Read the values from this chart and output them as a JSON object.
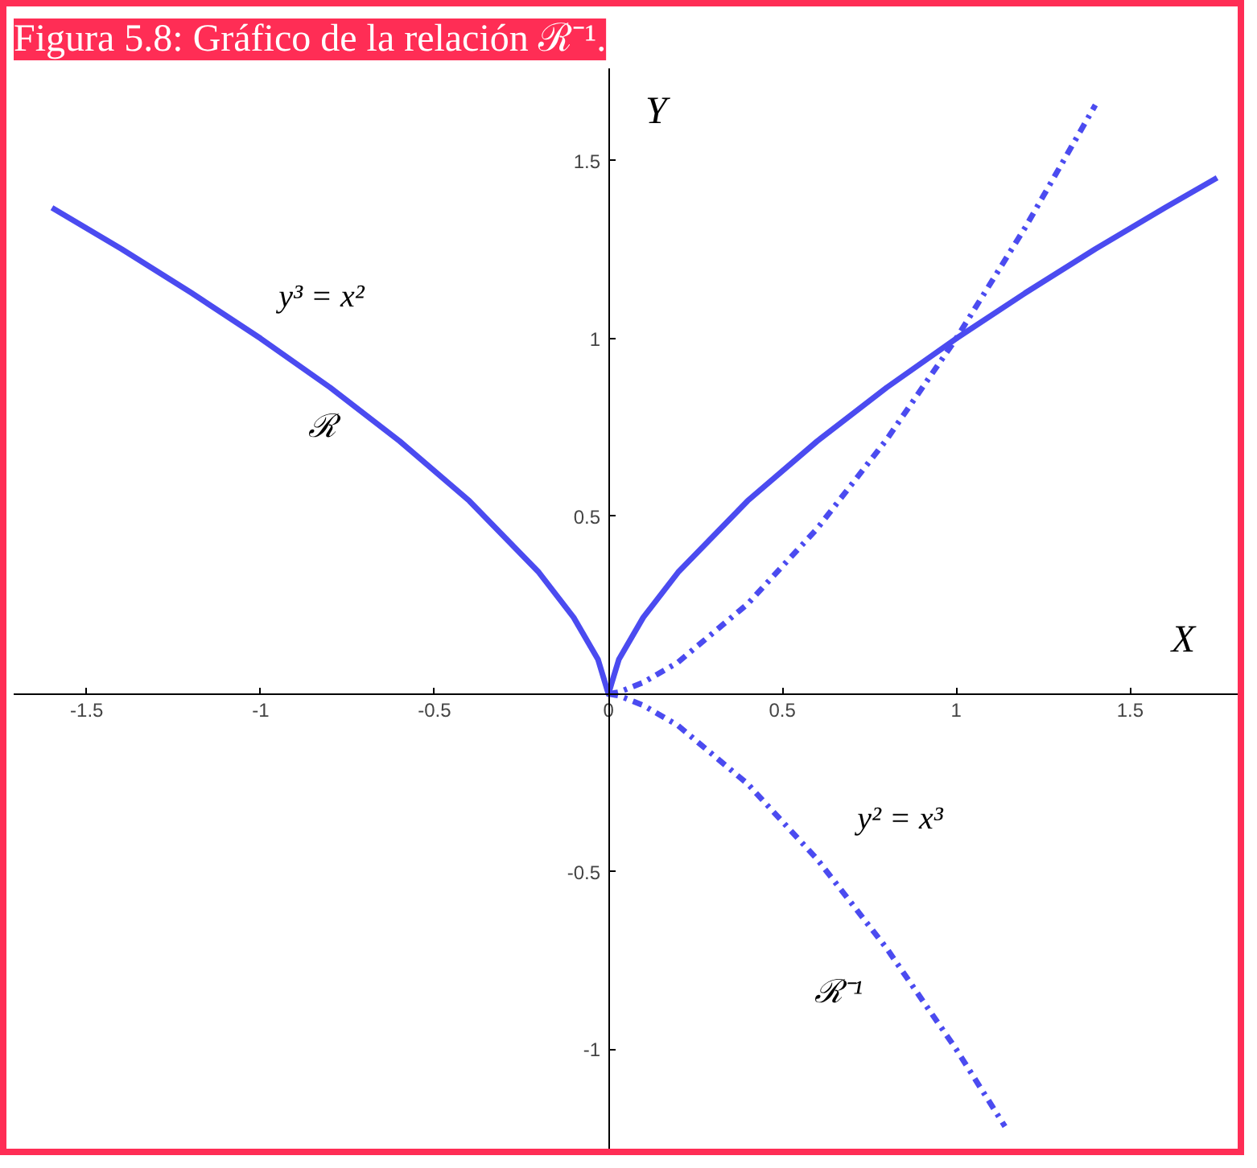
{
  "chart_data": {
    "type": "line",
    "title": "Figura 5.8: Gráfico de la relación ℛ⁻¹.",
    "xlabel": "X",
    "ylabel": "Y",
    "xlim": [
      -1.71,
      1.83
    ],
    "ylim": [
      -1.3,
      1.76
    ],
    "xticks": [
      -1.5,
      -1,
      -0.5,
      0,
      0.5,
      1,
      1.5
    ],
    "yticks": [
      -1,
      -0.5,
      0.5,
      1,
      1.5
    ],
    "grid": false,
    "marker": "none",
    "series": [
      {
        "color": "#4b4bf0",
        "line_style": "solid",
        "x": [
          -1.6,
          -1.4,
          -1.2,
          -1.0,
          -0.8,
          -0.6,
          -0.4,
          -0.2,
          -0.1,
          -0.03,
          0,
          0.03,
          0.1,
          0.2,
          0.4,
          0.6,
          0.8,
          1.0,
          1.2,
          1.4,
          1.6,
          1.75
        ],
        "values": [
          1.368,
          1.252,
          1.129,
          1.0,
          0.862,
          0.711,
          0.543,
          0.342,
          0.215,
          0.097,
          0,
          0.097,
          0.215,
          0.342,
          0.543,
          0.711,
          0.862,
          1.0,
          1.129,
          1.252,
          1.368,
          1.452
        ]
      },
      {
        "color": "#4b4bf0",
        "line_style": "dashdot",
        "x": [
          0,
          0.03,
          0.1,
          0.2,
          0.4,
          0.6,
          0.8,
          1.0,
          1.2,
          1.4
        ],
        "values": [
          0,
          0.005,
          0.032,
          0.089,
          0.253,
          0.465,
          0.716,
          1.0,
          1.315,
          1.657
        ]
      },
      {
        "color": "#4b4bf0",
        "line_style": "dashdot",
        "x": [
          0,
          0.03,
          0.1,
          0.2,
          0.4,
          0.6,
          0.8,
          1.0,
          1.14
        ],
        "values": [
          0,
          -0.005,
          -0.032,
          -0.089,
          -0.253,
          -0.465,
          -0.716,
          -1.0,
          -1.217
        ]
      }
    ],
    "annotations": [
      "y³ = x²",
      "ℛ",
      "y² = x³",
      "ℛ⁻¹"
    ]
  }
}
